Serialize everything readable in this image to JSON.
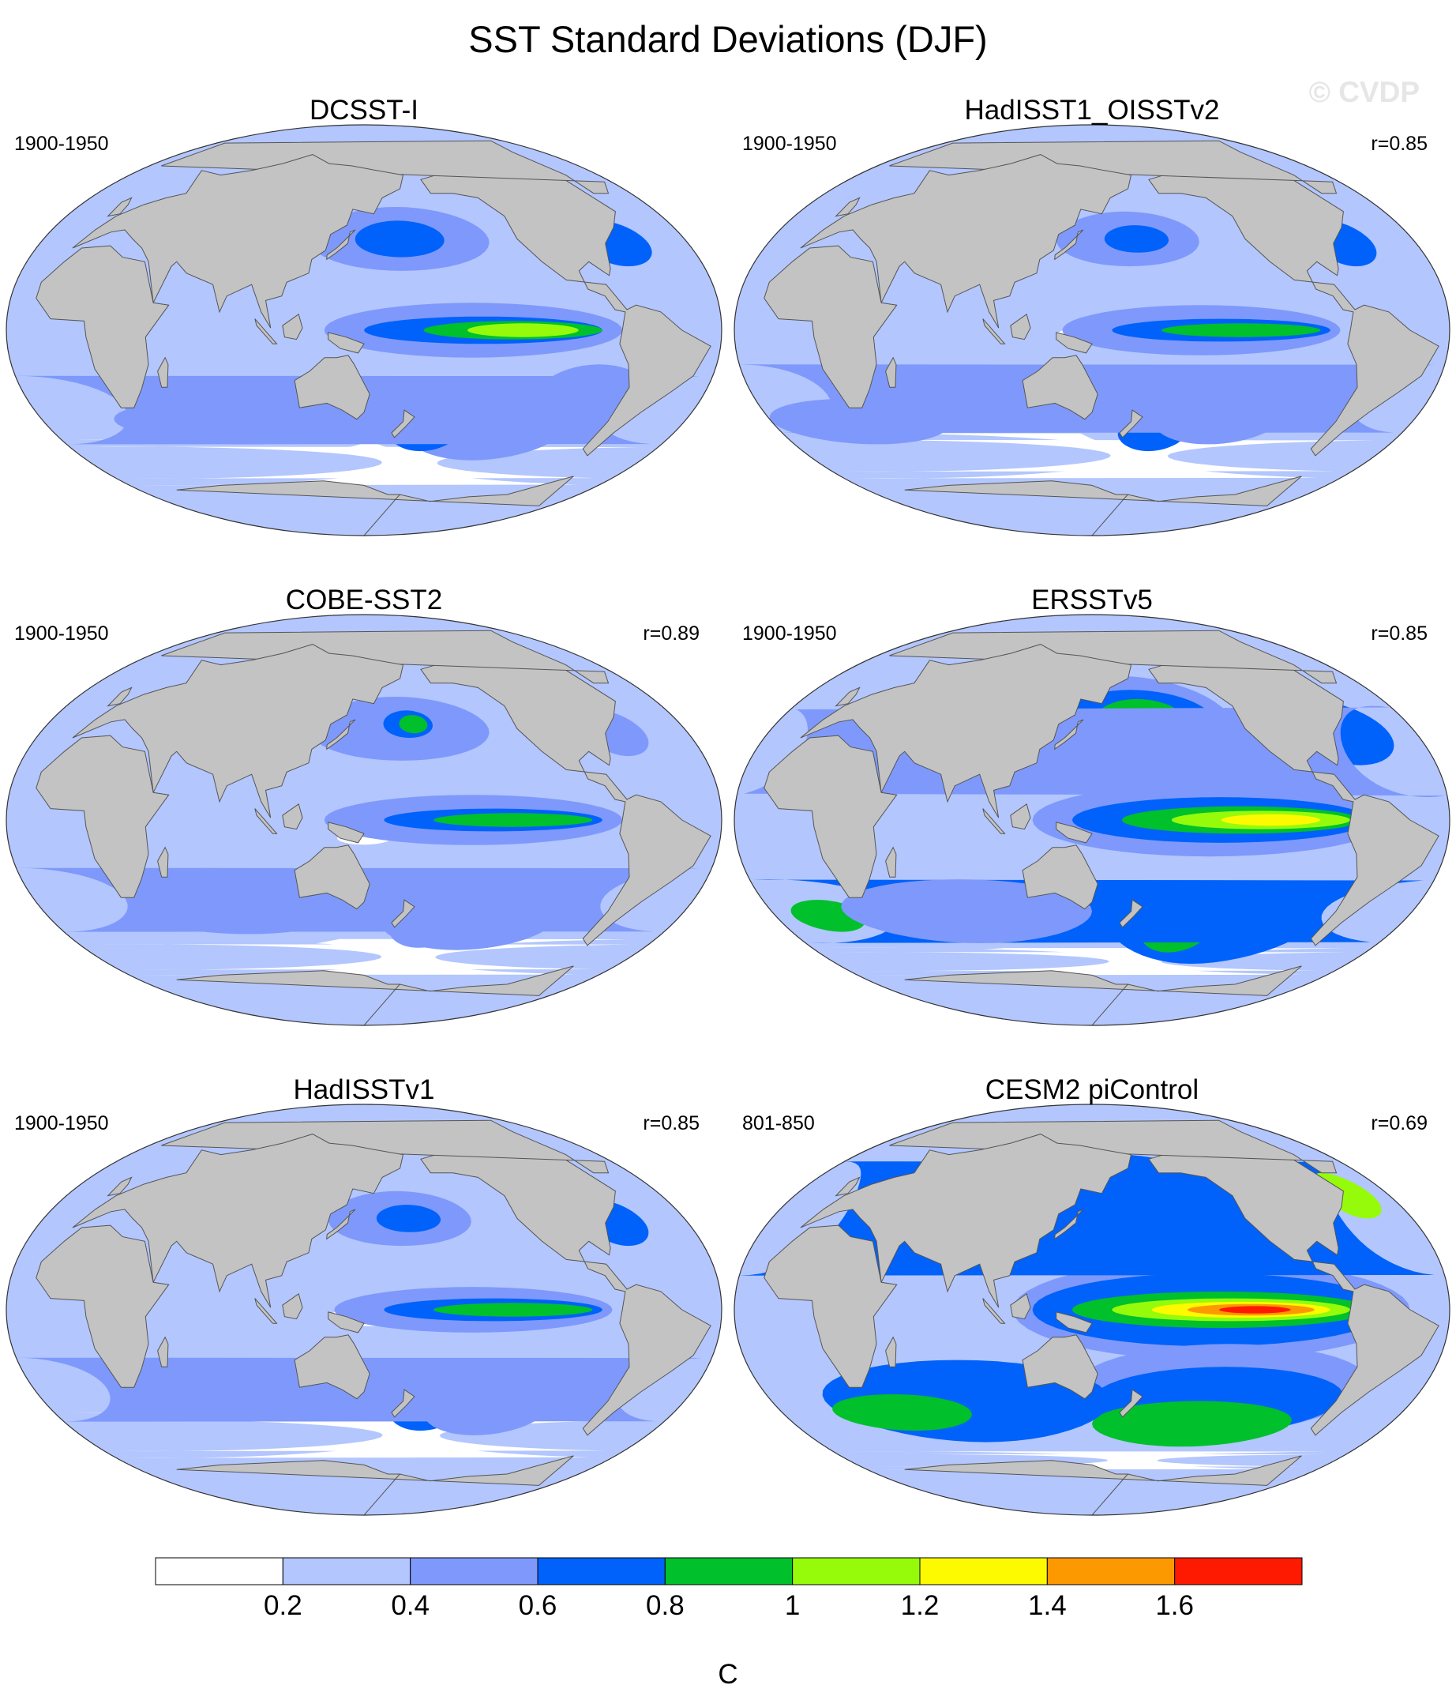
{
  "title": "SST Standard Deviations (DJF)",
  "watermark": "© CVDP",
  "colors": {
    "ocean_levels": [
      "#ffffff",
      "#b3c6fd",
      "#7e99fb",
      "#0062fa",
      "#00c02b",
      "#95fb0b",
      "#fdfa00",
      "#fd9900",
      "#fe1a00"
    ],
    "land": "#c3c3c3",
    "coast": "#555555"
  },
  "panels": [
    {
      "name": "DCSST-I",
      "period": "1900-1950",
      "corr": ""
    },
    {
      "name": "HadISST1_OISSTv2",
      "period": "1900-1950",
      "corr": "r=0.85"
    },
    {
      "name": "COBE-SST2",
      "period": "1900-1950",
      "corr": "r=0.89"
    },
    {
      "name": "ERSSTv5",
      "period": "1900-1950",
      "corr": "r=0.85"
    },
    {
      "name": "HadISSTv1",
      "period": "1900-1950",
      "corr": "r=0.85"
    },
    {
      "name": "CESM2 piControl",
      "period": "801-850",
      "corr": "r=0.69"
    }
  ],
  "colorbar": {
    "unit": "C",
    "boundaries": [
      0.2,
      0.4,
      0.6,
      0.8,
      1,
      1.2,
      1.4,
      1.6
    ],
    "labels": [
      "0.2",
      "0.4",
      "0.6",
      "0.8",
      "1",
      "1.2",
      "1.4",
      "1.6"
    ]
  }
}
